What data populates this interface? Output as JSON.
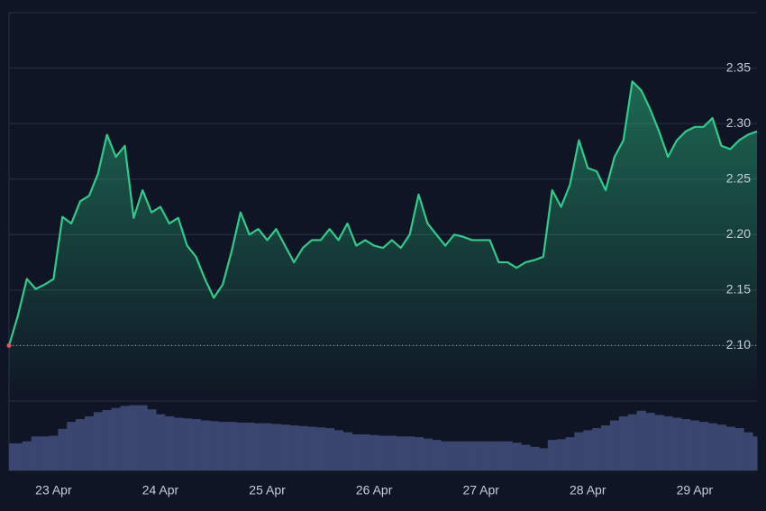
{
  "chart_data": {
    "type": "line",
    "categories": [
      null,
      null,
      null,
      null,
      null,
      "23 Apr",
      null,
      null,
      null,
      null,
      null,
      null,
      null,
      null,
      null,
      null,
      null,
      "24 Apr",
      null,
      null,
      null,
      null,
      null,
      null,
      null,
      null,
      null,
      null,
      null,
      "25 Apr",
      null,
      null,
      null,
      null,
      null,
      null,
      null,
      null,
      null,
      null,
      null,
      "26 Apr",
      null,
      null,
      null,
      null,
      null,
      null,
      null,
      null,
      null,
      null,
      null,
      "27 Apr",
      null,
      null,
      null,
      null,
      null,
      null,
      null,
      null,
      null,
      null,
      null,
      "28 Apr",
      null,
      null,
      null,
      null,
      null,
      null,
      null,
      null,
      null,
      null,
      null,
      "29 Apr",
      null,
      null,
      null,
      null,
      null,
      null,
      null
    ],
    "values": [
      2.1,
      2.127,
      2.16,
      2.151,
      2.155,
      2.16,
      2.216,
      2.21,
      2.23,
      2.235,
      2.255,
      2.29,
      2.27,
      2.28,
      2.215,
      2.24,
      2.22,
      2.225,
      2.21,
      2.215,
      2.19,
      2.18,
      2.16,
      2.143,
      2.155,
      2.185,
      2.22,
      2.2,
      2.205,
      2.195,
      2.205,
      2.19,
      2.175,
      2.188,
      2.195,
      2.195,
      2.205,
      2.195,
      2.21,
      2.19,
      2.195,
      2.19,
      2.188,
      2.195,
      2.188,
      2.2,
      2.236,
      2.21,
      2.2,
      2.19,
      2.2,
      2.198,
      2.195,
      2.195,
      2.195,
      2.175,
      2.175,
      2.17,
      2.175,
      2.177,
      2.18,
      2.24,
      2.225,
      2.245,
      2.285,
      2.26,
      2.257,
      2.24,
      2.27,
      2.285,
      2.338,
      2.33,
      2.313,
      2.293,
      2.27,
      2.285,
      2.293,
      2.297,
      2.297,
      2.305,
      2.28,
      2.277,
      2.285,
      2.29,
      2.293
    ],
    "color": "#2ecc8a",
    "ylim": [
      2.05,
      2.4
    ],
    "yticks": [
      {
        "value": 2.1,
        "label": "2.10"
      },
      {
        "value": 2.15,
        "label": "2.15"
      },
      {
        "value": 2.2,
        "label": "2.20"
      },
      {
        "value": 2.25,
        "label": "2.25"
      },
      {
        "value": 2.3,
        "label": "2.30"
      },
      {
        "value": 2.35,
        "label": "2.35"
      }
    ],
    "grid": true,
    "volume": {
      "color": "#3a4570",
      "ylim": [
        0,
        100
      ],
      "values": [
        39,
        39,
        42,
        49,
        49,
        50,
        60,
        70,
        74,
        78,
        84,
        87,
        90,
        93,
        94,
        94,
        88,
        81,
        78,
        76,
        75,
        74,
        72,
        71,
        70,
        70,
        69,
        69,
        68,
        68,
        67,
        66,
        65,
        64,
        63,
        62,
        61,
        58,
        55,
        52,
        52,
        51,
        50,
        50,
        49,
        49,
        48,
        46,
        44,
        42,
        42,
        42,
        42,
        42,
        42,
        42,
        42,
        40,
        37,
        34,
        32,
        44,
        45,
        48,
        55,
        58,
        61,
        65,
        72,
        78,
        81,
        86,
        83,
        80,
        78,
        76,
        74,
        72,
        70,
        68,
        66,
        63,
        61,
        55,
        49
      ]
    }
  }
}
